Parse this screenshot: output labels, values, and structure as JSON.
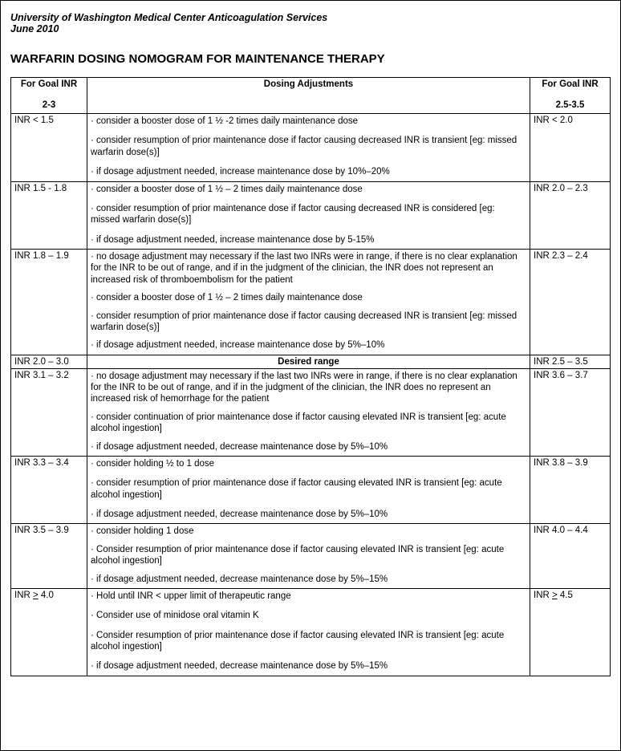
{
  "header": {
    "org": "University of Washington Medical Center Anticoagulation Services",
    "date": "June 2010"
  },
  "title": "WARFARIN DOSING NOMOGRAM FOR MAINTENANCE THERAPY",
  "table": {
    "headers": {
      "left_label": "For Goal INR",
      "left_value": "2-3",
      "mid_label": "Dosing Adjustments",
      "right_label": "For Goal INR",
      "right_value": "2.5-3.5"
    },
    "rows": {
      "r1": {
        "left": "INR < 1.5",
        "right": "INR < 2.0",
        "b1": "· consider a booster dose of 1 ½ -2 times daily maintenance dose",
        "b2": "· consider resumption of prior maintenance dose if factor causing decreased INR is  transient [eg: missed warfarin dose(s)]",
        "b3": "· if dosage adjustment needed, increase maintenance dose by 10%–20%"
      },
      "r2": {
        "left": "INR 1.5 - 1.8",
        "right": "INR 2.0 – 2.3",
        "b1": "· consider a booster dose of 1 ½  – 2 times daily maintenance dose",
        "b2": "· consider resumption of prior maintenance dose if factor causing decreased INR is considered  [eg: missed warfarin dose(s)]",
        "b3": "· if dosage adjustment needed, increase maintenance dose by 5-15%"
      },
      "r3": {
        "left": "INR 1.8 – 1.9",
        "right": "INR 2.3 – 2.4",
        "b1": "· no dosage adjustment may necessary if the last two INRs were in range, if there is no clear explanation for the INR to be out of range, and if in the judgment of the clinician, the INR does not represent an increased risk of thromboembolism for the patient",
        "b2": "· consider a booster dose of 1 ½  – 2 times daily maintenance dose",
        "b3": "· consider resumption of prior maintenance dose if factor causing decreased INR is transient [eg: missed warfarin dose(s)]",
        "b4": "· if dosage adjustment needed, increase maintenance dose by 5%–10%"
      },
      "desired": {
        "left": "INR 2.0 – 3.0",
        "mid": "Desired range",
        "right": "INR 2.5 – 3.5"
      },
      "r4": {
        "left": "INR 3.1 – 3.2",
        "right": "INR 3.6 – 3.7",
        "b1": "· no dosage adjustment may necessary if the last two INRs were in range, if there is no clear explanation for the INR to be out of range, and if in the judgment of the clinician, the INR does no represent an increased risk of hemorrhage for the patient",
        "b2": "· consider continuation of prior maintenance dose if factor causing elevated INR is transient [eg: acute alcohol ingestion]",
        "b3": "· if dosage adjustment needed, decrease maintenance dose by 5%–10%"
      },
      "r5": {
        "left": "INR 3.3 – 3.4",
        "right": "INR 3.8 – 3.9",
        "b1": "· consider holding ½ to 1 dose",
        "b2": "· consider resumption of prior maintenance dose if factor causing elevated INR is transient [eg: acute alcohol ingestion]",
        "b3": "· if dosage adjustment needed, decrease maintenance dose by 5%–10%"
      },
      "r6": {
        "left": "INR 3.5 – 3.9",
        "right": "INR 4.0 – 4.4",
        "b1": "· consider holding 1 dose",
        "b2": "· Consider resumption of prior maintenance dose if factor causing elevated INR is transient [eg: acute alcohol ingestion]",
        "b3": "· if dosage adjustment needed, decrease maintenance dose by 5%–15%"
      },
      "r7": {
        "left_pre": "INR ",
        "left_op": ">",
        "left_post": " 4.0",
        "right_pre": "INR ",
        "right_op": ">",
        "right_post": " 4.5",
        "b1": "· Hold until INR < upper limit of therapeutic range",
        "b2": "· Consider use of minidose oral vitamin K",
        "b3": "· Consider resumption of prior maintenance dose if factor causing elevated INR is transient [eg: acute alcohol ingestion]",
        "b4": "· if dosage adjustment needed, decrease maintenance dose by 5%–15%"
      }
    }
  }
}
